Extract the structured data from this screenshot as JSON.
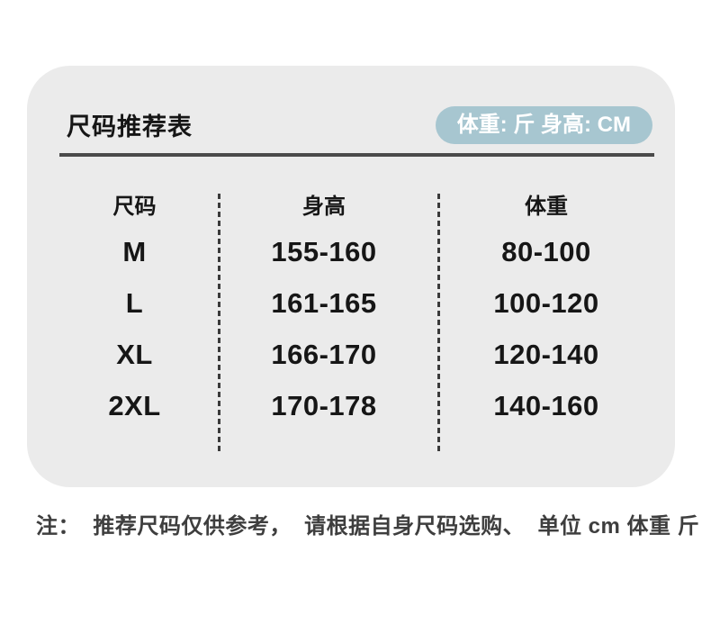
{
  "header": {
    "title": "尺码推荐表",
    "unit_badge": "体重: 斤 身高: CM"
  },
  "chart_data": {
    "type": "table",
    "title": "尺码推荐表",
    "columns": [
      "尺码",
      "身高",
      "体重"
    ],
    "rows": [
      [
        "M",
        "155-160",
        "80-100"
      ],
      [
        "L",
        "161-165",
        "100-120"
      ],
      [
        "XL",
        "166-170",
        "120-140"
      ],
      [
        "2XL",
        "170-178",
        "140-160"
      ]
    ],
    "units": {
      "height": "CM",
      "weight": "斤"
    }
  },
  "note": "注：  推荐尺码仅供参考，  请根据自身尺码选购、  单位 cm 体重 斤",
  "colors": {
    "card_bg": "#ebebeb",
    "badge_bg": "#a7c6d0",
    "badge_text": "#ffffff",
    "divider": "#4a4a4a",
    "dash": "#3a3a3a",
    "text": "#161616",
    "note_text": "#3e3e3e"
  }
}
